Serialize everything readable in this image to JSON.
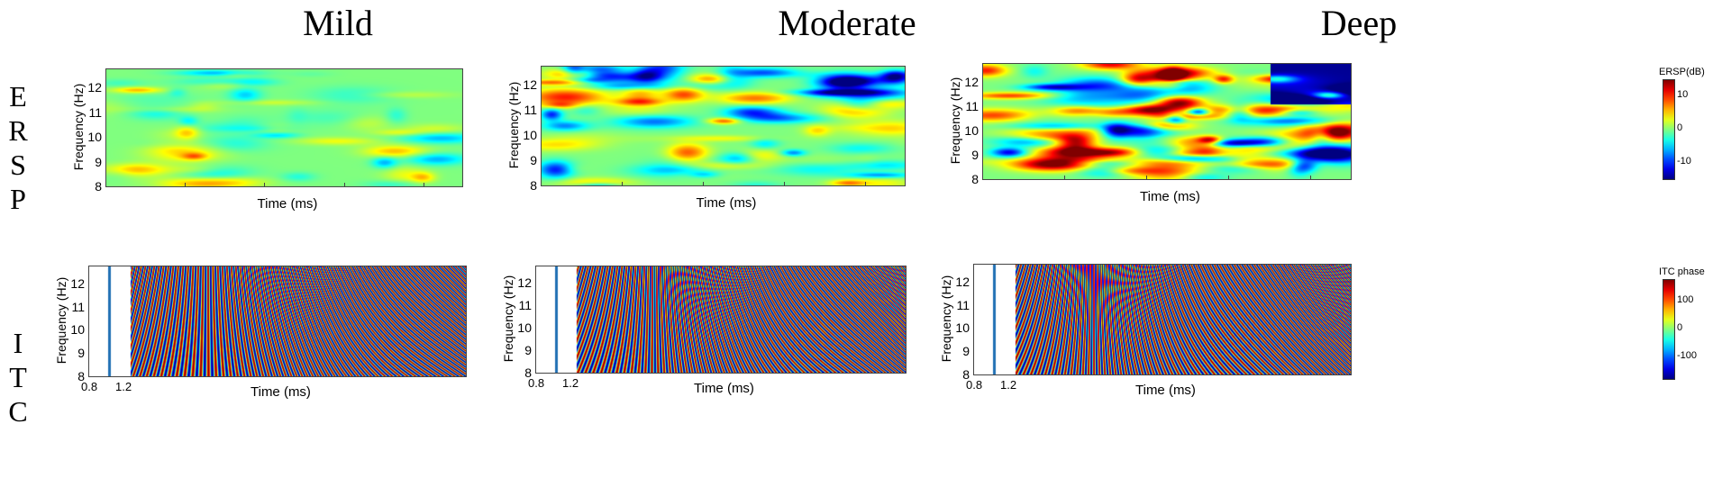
{
  "columns": [
    "Mild",
    "Moderate",
    "Deep"
  ],
  "rows": [
    {
      "letters": [
        "E",
        "R",
        "S",
        "P"
      ]
    },
    {
      "letters": [
        "I",
        "T",
        "C"
      ]
    }
  ],
  "ylabel": "Frequency (Hz)",
  "xlabel": "Time (ms)",
  "yticks": [
    "12",
    "11",
    "10",
    "9",
    "8"
  ],
  "itc_xticks": [
    "0.8",
    "1.2"
  ],
  "colorbars": {
    "ersp": {
      "title": "ERSP(dB)",
      "ticks": [
        "10",
        "0",
        "-10"
      ],
      "range": [
        -15,
        15
      ]
    },
    "itc": {
      "title": "ITC phase",
      "ticks": [
        "100",
        "0",
        "-100"
      ],
      "range": [
        -180,
        180
      ]
    }
  },
  "chart_data": [
    {
      "type": "heatmap",
      "panel": "ERSP Mild",
      "xlabel": "Time (ms)",
      "ylabel": "Frequency (Hz)",
      "ylim": [
        8,
        12.8
      ],
      "colorbar": "ERSP(dB)"
    },
    {
      "type": "heatmap",
      "panel": "ERSP Moderate",
      "xlabel": "Time (ms)",
      "ylabel": "Frequency (Hz)",
      "ylim": [
        8,
        12.8
      ],
      "colorbar": "ERSP(dB)"
    },
    {
      "type": "heatmap",
      "panel": "ERSP Deep",
      "xlabel": "Time (ms)",
      "ylabel": "Frequency (Hz)",
      "ylim": [
        8,
        12.8
      ],
      "colorbar": "ERSP(dB)"
    },
    {
      "type": "heatmap",
      "panel": "ITC Mild",
      "xlabel": "Time (ms)",
      "ylabel": "Frequency (Hz)",
      "ylim": [
        8,
        12.8
      ],
      "xticks": [
        "0.8",
        "1.2"
      ],
      "colorbar": "ITC phase"
    },
    {
      "type": "heatmap",
      "panel": "ITC Moderate",
      "xlabel": "Time (ms)",
      "ylabel": "Frequency (Hz)",
      "ylim": [
        8,
        12.8
      ],
      "xticks": [
        "0.8",
        "1.2"
      ],
      "colorbar": "ITC phase"
    },
    {
      "type": "heatmap",
      "panel": "ITC Deep",
      "xlabel": "Time (ms)",
      "ylabel": "Frequency (Hz)",
      "ylim": [
        8,
        12.8
      ],
      "xticks": [
        "0.8",
        "1.2"
      ],
      "colorbar": "ITC phase"
    }
  ]
}
